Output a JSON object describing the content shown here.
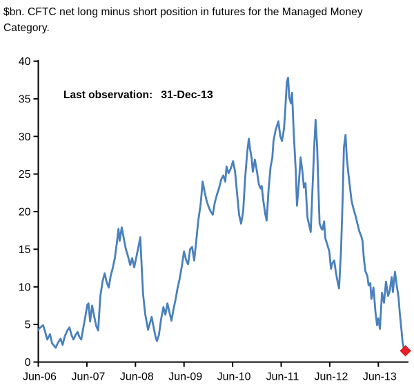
{
  "header": {
    "title_line1": "$bn. CFTC net long minus short position in futures for the Managed Money",
    "title_line2": "Category."
  },
  "annotation": {
    "label": "Last observation:",
    "value": "31-Dec-13"
  },
  "colors": {
    "series_line": "#4a80bd",
    "marker_fill": "#ed1c24",
    "marker_stroke": "#bf1722",
    "axis": "#000000",
    "text": "#000000",
    "background": "#ffffff"
  },
  "chart_data": {
    "type": "line",
    "title": "$bn. CFTC net long minus short position in futures for the Managed Money Category.",
    "xlabel": "",
    "ylabel": "$bn",
    "ylim": [
      0,
      40
    ],
    "y_ticks": [
      0,
      5,
      10,
      15,
      20,
      25,
      30,
      35,
      40
    ],
    "x_tick_labels": [
      "Jun-06",
      "Jun-07",
      "Jun-08",
      "Jun-09",
      "Jun-10",
      "Jun-11",
      "Jun-12",
      "Jun-13"
    ],
    "x_tick_months": [
      0,
      12,
      24,
      36,
      48,
      60,
      72,
      84
    ],
    "xlim_months": [
      0,
      91.5
    ],
    "grid": false,
    "legend": "none",
    "x_unit": "months since Jun-2006",
    "series": [
      {
        "name": "CFTC net long minus short position in futures, Managed Money",
        "color": "#4a80bd",
        "points": [
          [
            0.0,
            4.3
          ],
          [
            0.5,
            4.6
          ],
          [
            1.2,
            4.9
          ],
          [
            1.7,
            4.0
          ],
          [
            2.2,
            3.0
          ],
          [
            2.9,
            3.7
          ],
          [
            3.4,
            2.5
          ],
          [
            4.3,
            1.9
          ],
          [
            4.9,
            2.6
          ],
          [
            5.5,
            3.1
          ],
          [
            6.0,
            2.3
          ],
          [
            6.6,
            3.5
          ],
          [
            7.2,
            4.2
          ],
          [
            7.7,
            4.6
          ],
          [
            8.2,
            3.6
          ],
          [
            8.7,
            3.0
          ],
          [
            9.2,
            3.6
          ],
          [
            9.7,
            4.0
          ],
          [
            10.2,
            3.3
          ],
          [
            10.6,
            3.0
          ],
          [
            11.1,
            4.5
          ],
          [
            11.6,
            6.0
          ],
          [
            12.1,
            7.6
          ],
          [
            12.4,
            7.8
          ],
          [
            12.8,
            5.4
          ],
          [
            13.3,
            7.5
          ],
          [
            13.8,
            6.1
          ],
          [
            14.3,
            4.8
          ],
          [
            14.8,
            4.2
          ],
          [
            15.3,
            8.7
          ],
          [
            15.9,
            10.8
          ],
          [
            16.4,
            11.8
          ],
          [
            16.9,
            10.6
          ],
          [
            17.4,
            9.9
          ],
          [
            17.9,
            11.5
          ],
          [
            18.4,
            12.5
          ],
          [
            18.9,
            13.8
          ],
          [
            19.4,
            15.8
          ],
          [
            19.8,
            17.7
          ],
          [
            20.1,
            16.1
          ],
          [
            20.6,
            17.9
          ],
          [
            21.1,
            16.5
          ],
          [
            21.6,
            15.1
          ],
          [
            22.2,
            14.0
          ],
          [
            22.7,
            12.9
          ],
          [
            23.2,
            13.8
          ],
          [
            23.7,
            12.6
          ],
          [
            24.2,
            13.9
          ],
          [
            24.7,
            15.2
          ],
          [
            25.2,
            16.6
          ],
          [
            25.6,
            12.0
          ],
          [
            25.9,
            9.0
          ],
          [
            26.4,
            6.4
          ],
          [
            27.1,
            4.3
          ],
          [
            27.6,
            5.2
          ],
          [
            28.0,
            6.0
          ],
          [
            28.5,
            4.6
          ],
          [
            29.0,
            3.3
          ],
          [
            29.3,
            2.8
          ],
          [
            29.8,
            3.6
          ],
          [
            30.3,
            5.6
          ],
          [
            30.9,
            7.3
          ],
          [
            31.4,
            6.3
          ],
          [
            31.9,
            7.8
          ],
          [
            32.4,
            6.6
          ],
          [
            32.9,
            5.5
          ],
          [
            33.4,
            7.0
          ],
          [
            33.9,
            8.3
          ],
          [
            34.4,
            9.8
          ],
          [
            34.9,
            11.0
          ],
          [
            35.5,
            12.9
          ],
          [
            36.0,
            14.7
          ],
          [
            36.5,
            13.6
          ],
          [
            37.0,
            13.0
          ],
          [
            37.5,
            15.0
          ],
          [
            38.0,
            15.3
          ],
          [
            38.5,
            13.5
          ],
          [
            39.0,
            16.0
          ],
          [
            39.5,
            18.7
          ],
          [
            40.1,
            21.0
          ],
          [
            40.6,
            24.0
          ],
          [
            41.1,
            22.6
          ],
          [
            41.6,
            21.4
          ],
          [
            42.1,
            20.6
          ],
          [
            42.6,
            20.0
          ],
          [
            43.1,
            19.6
          ],
          [
            43.6,
            21.2
          ],
          [
            44.1,
            22.2
          ],
          [
            44.7,
            23.2
          ],
          [
            45.2,
            24.3
          ],
          [
            45.7,
            24.8
          ],
          [
            46.2,
            24.0
          ],
          [
            46.5,
            26.0
          ],
          [
            47.0,
            25.1
          ],
          [
            47.6,
            25.8
          ],
          [
            48.1,
            26.7
          ],
          [
            48.6,
            25.4
          ],
          [
            49.1,
            22.4
          ],
          [
            49.6,
            19.6
          ],
          [
            50.1,
            18.4
          ],
          [
            50.6,
            20.0
          ],
          [
            51.1,
            24.5
          ],
          [
            51.6,
            27.8
          ],
          [
            52.0,
            29.7
          ],
          [
            52.3,
            28.4
          ],
          [
            52.7,
            27.1
          ],
          [
            53.0,
            25.3
          ],
          [
            53.5,
            26.9
          ],
          [
            54.0,
            25.4
          ],
          [
            54.5,
            23.6
          ],
          [
            54.9,
            23.1
          ],
          [
            55.2,
            23.4
          ],
          [
            55.6,
            21.4
          ],
          [
            56.1,
            19.6
          ],
          [
            56.4,
            18.8
          ],
          [
            56.9,
            23.0
          ],
          [
            57.4,
            26.0
          ],
          [
            57.8,
            27.1
          ],
          [
            58.1,
            29.4
          ],
          [
            58.6,
            30.8
          ],
          [
            59.3,
            32.0
          ],
          [
            59.8,
            30.0
          ],
          [
            60.2,
            29.4
          ],
          [
            60.7,
            31.0
          ],
          [
            61.0,
            33.5
          ],
          [
            61.4,
            37.2
          ],
          [
            61.7,
            37.8
          ],
          [
            62.0,
            35.2
          ],
          [
            62.4,
            34.4
          ],
          [
            62.7,
            35.8
          ],
          [
            63.1,
            30.5
          ],
          [
            63.6,
            25.5
          ],
          [
            63.9,
            20.8
          ],
          [
            64.4,
            24.0
          ],
          [
            64.8,
            27.2
          ],
          [
            65.3,
            25.1
          ],
          [
            65.6,
            23.2
          ],
          [
            66.0,
            23.8
          ],
          [
            66.5,
            19.2
          ],
          [
            67.0,
            18.0
          ],
          [
            67.3,
            17.3
          ],
          [
            67.8,
            24.0
          ],
          [
            68.2,
            29.0
          ],
          [
            68.5,
            32.2
          ],
          [
            68.9,
            28.5
          ],
          [
            69.2,
            23.0
          ],
          [
            69.5,
            18.4
          ],
          [
            69.9,
            17.8
          ],
          [
            70.2,
            17.6
          ],
          [
            70.6,
            18.7
          ],
          [
            70.9,
            16.5
          ],
          [
            71.4,
            15.6
          ],
          [
            71.9,
            14.7
          ],
          [
            72.3,
            12.4
          ],
          [
            72.6,
            13.1
          ],
          [
            73.1,
            13.5
          ],
          [
            73.5,
            12.0
          ],
          [
            74.0,
            10.5
          ],
          [
            74.3,
            9.8
          ],
          [
            74.8,
            15.0
          ],
          [
            75.2,
            22.0
          ],
          [
            75.5,
            28.5
          ],
          [
            75.9,
            30.2
          ],
          [
            76.2,
            27.3
          ],
          [
            76.5,
            25.6
          ],
          [
            76.9,
            23.7
          ],
          [
            77.4,
            21.4
          ],
          [
            77.9,
            20.3
          ],
          [
            78.4,
            19.4
          ],
          [
            78.7,
            18.7
          ],
          [
            79.3,
            17.4
          ],
          [
            79.8,
            16.7
          ],
          [
            80.1,
            16.1
          ],
          [
            80.4,
            13.9
          ],
          [
            80.8,
            12.1
          ],
          [
            81.3,
            11.4
          ],
          [
            81.6,
            10.2
          ],
          [
            82.0,
            10.5
          ],
          [
            82.3,
            8.4
          ],
          [
            82.8,
            9.9
          ],
          [
            83.3,
            6.6
          ],
          [
            83.7,
            4.9
          ],
          [
            84.0,
            5.8
          ],
          [
            84.4,
            4.4
          ],
          [
            84.9,
            9.2
          ],
          [
            85.4,
            7.9
          ],
          [
            85.9,
            10.7
          ],
          [
            86.4,
            8.8
          ],
          [
            86.8,
            9.4
          ],
          [
            87.3,
            11.3
          ],
          [
            87.6,
            9.3
          ],
          [
            88.1,
            12.0
          ],
          [
            88.6,
            10.0
          ],
          [
            89.0,
            8.6
          ],
          [
            89.3,
            6.5
          ],
          [
            89.7,
            4.4
          ],
          [
            90.0,
            2.6
          ],
          [
            90.3,
            1.8
          ],
          [
            90.7,
            1.5
          ]
        ]
      }
    ],
    "last_observation": {
      "date": "31-Dec-13",
      "value": 1.5,
      "marker": "red-diamond"
    }
  }
}
